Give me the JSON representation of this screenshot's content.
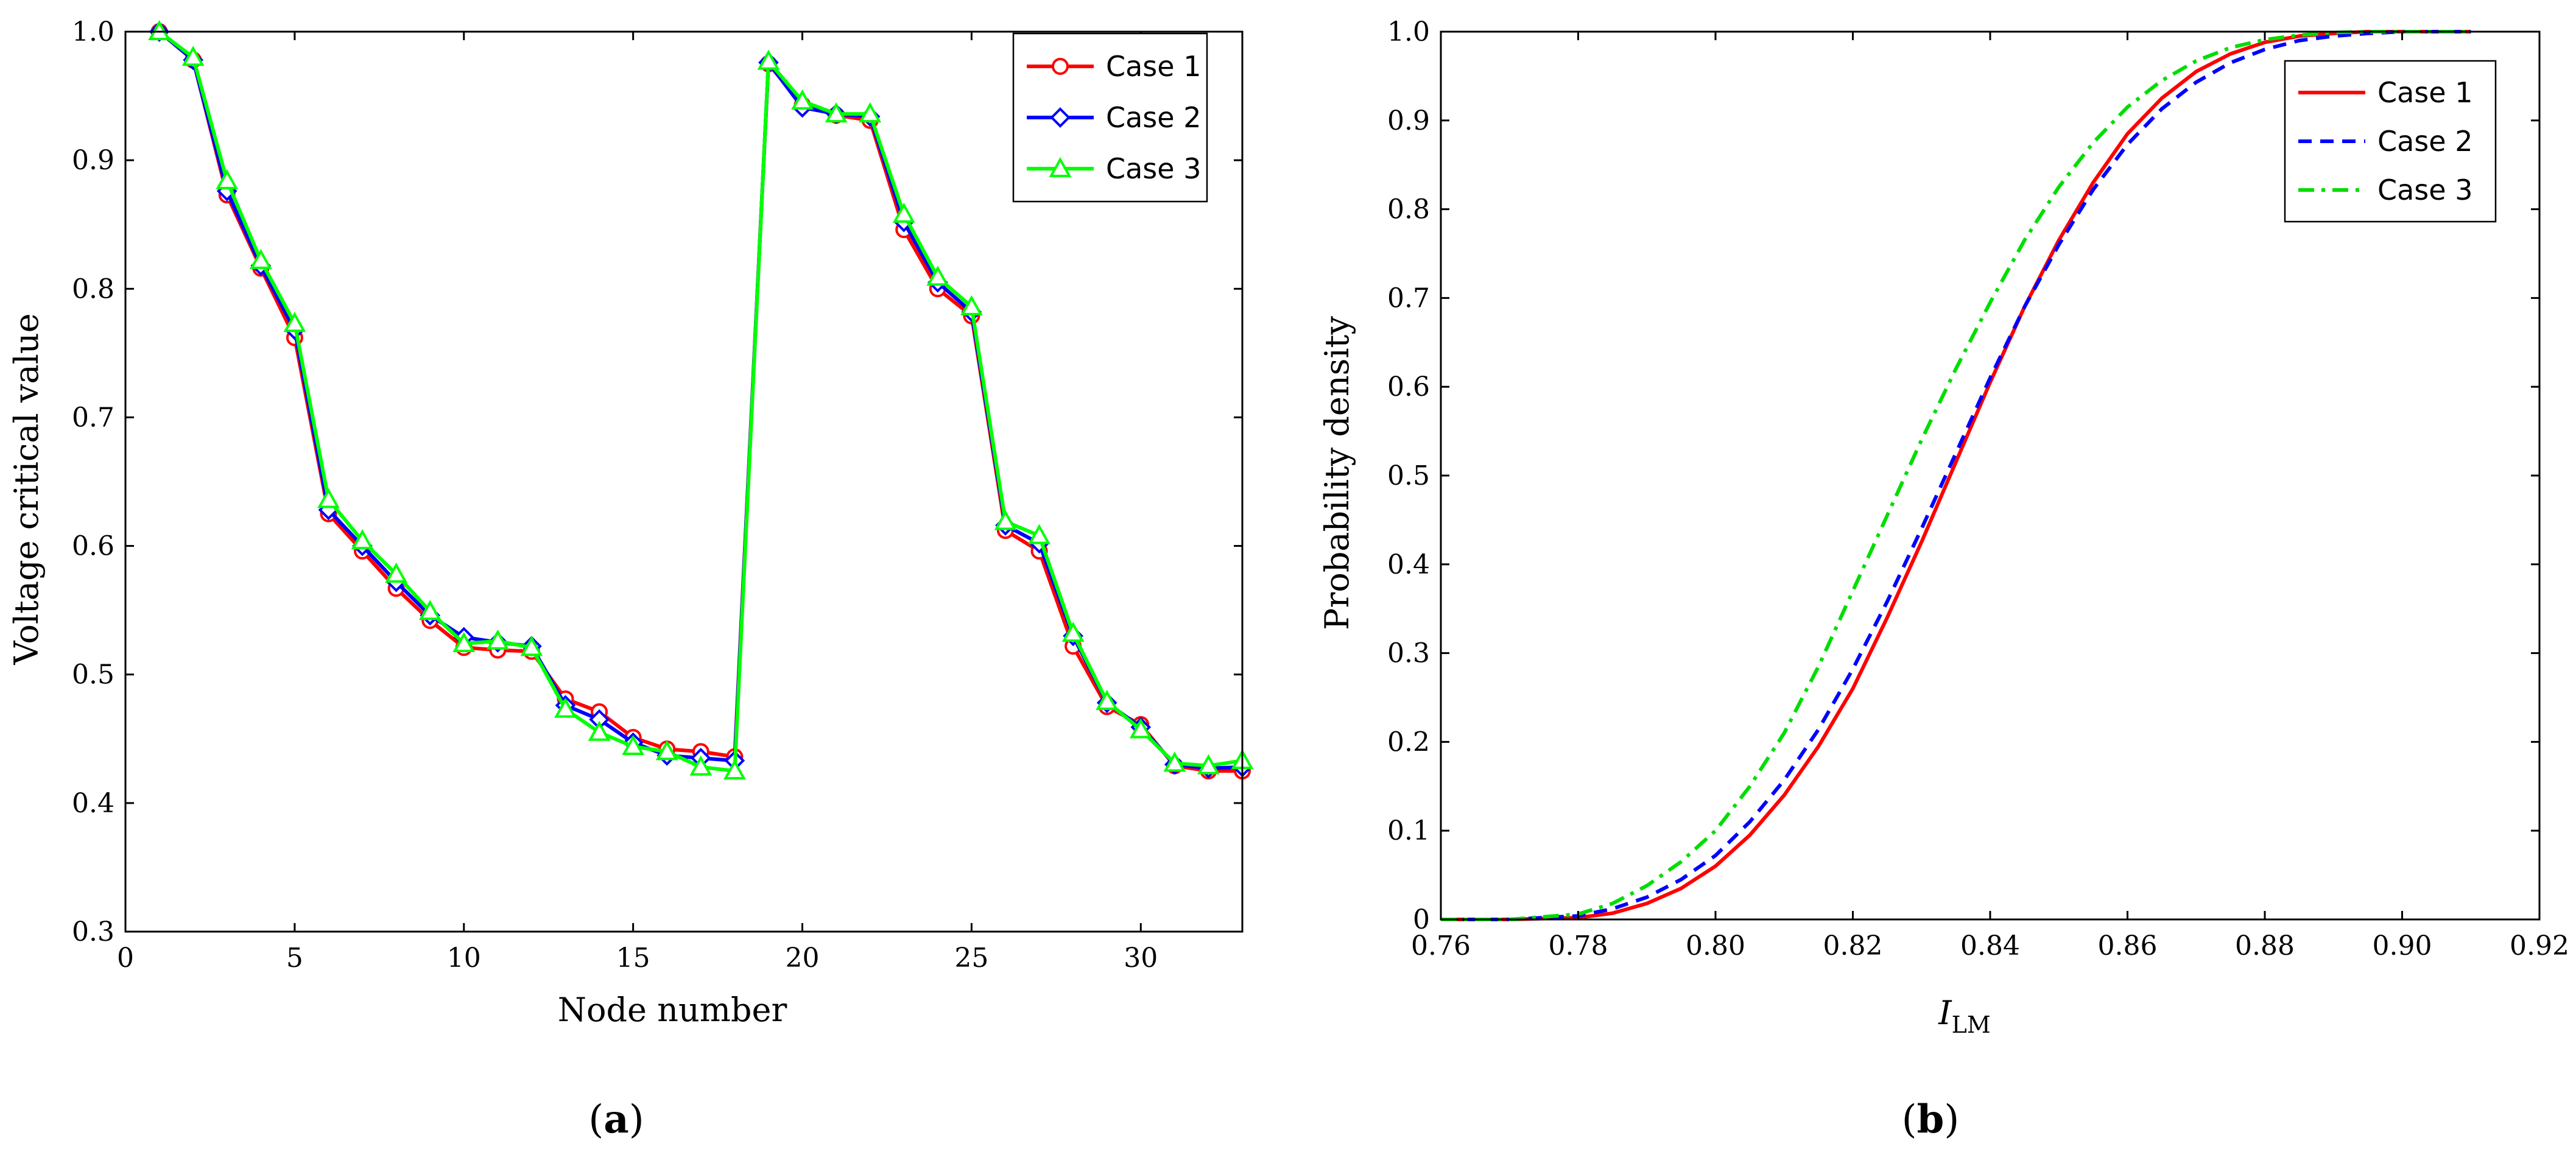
{
  "chart_data": [
    {
      "type": "line",
      "panel_label": "a",
      "title": "",
      "xlabel": "Node number",
      "ylabel": "Voltage critical value",
      "xlim": [
        0,
        33
      ],
      "ylim": [
        0.3,
        1.0
      ],
      "xticks": [
        0,
        5,
        10,
        15,
        20,
        25,
        30
      ],
      "xtick_labels": [
        "0",
        "5",
        "10",
        "15",
        "20",
        "25",
        "30"
      ],
      "yticks": [
        0.3,
        0.4,
        0.5,
        0.6,
        0.7,
        0.8,
        0.9,
        1.0
      ],
      "ytick_labels": [
        "0.3",
        "0.4",
        "0.5",
        "0.6",
        "0.7",
        "0.8",
        "0.9",
        "1.0"
      ],
      "grid": false,
      "legend_position": "top-right",
      "x": [
        1,
        2,
        3,
        4,
        5,
        6,
        7,
        8,
        9,
        10,
        11,
        12,
        13,
        14,
        15,
        16,
        17,
        18,
        19,
        20,
        21,
        22,
        23,
        24,
        25,
        26,
        27,
        28,
        29,
        30,
        31,
        32,
        33
      ],
      "series": [
        {
          "name": "Case 1",
          "color": "#ff0000",
          "marker": "circle",
          "values": [
            1.0,
            0.978,
            0.873,
            0.816,
            0.762,
            0.625,
            0.596,
            0.567,
            0.542,
            0.521,
            0.519,
            0.518,
            0.481,
            0.471,
            0.451,
            0.442,
            0.44,
            0.436,
            0.975,
            0.943,
            0.935,
            0.931,
            0.846,
            0.8,
            0.779,
            0.612,
            0.596,
            0.522,
            0.475,
            0.461,
            0.429,
            0.425,
            0.425
          ]
        },
        {
          "name": "Case 2",
          "color": "#0000ff",
          "marker": "diamond",
          "values": [
            1.0,
            0.978,
            0.876,
            0.818,
            0.768,
            0.628,
            0.6,
            0.572,
            0.546,
            0.529,
            0.525,
            0.522,
            0.476,
            0.465,
            0.447,
            0.437,
            0.435,
            0.433,
            0.976,
            0.941,
            0.936,
            0.934,
            0.852,
            0.805,
            0.782,
            0.616,
            0.602,
            0.53,
            0.478,
            0.459,
            0.43,
            0.427,
            0.428
          ]
        },
        {
          "name": "Case 3",
          "color": "#00ff00",
          "marker": "triangle",
          "values": [
            1.0,
            0.98,
            0.884,
            0.822,
            0.773,
            0.636,
            0.604,
            0.578,
            0.549,
            0.524,
            0.526,
            0.521,
            0.473,
            0.455,
            0.444,
            0.44,
            0.428,
            0.425,
            0.977,
            0.946,
            0.936,
            0.936,
            0.858,
            0.809,
            0.786,
            0.619,
            0.608,
            0.532,
            0.479,
            0.457,
            0.431,
            0.429,
            0.433
          ]
        }
      ]
    },
    {
      "type": "line",
      "panel_label": "b",
      "title": "",
      "xlabel_main": "I",
      "xlabel_sub": "LM",
      "ylabel": "Probability density",
      "xlim": [
        0.76,
        0.92
      ],
      "ylim": [
        0,
        1.0
      ],
      "xticks": [
        0.76,
        0.78,
        0.8,
        0.82,
        0.84,
        0.86,
        0.88,
        0.9,
        0.92
      ],
      "xtick_labels": [
        "0.76",
        "0.78",
        "0.80",
        "0.82",
        "0.84",
        "0.86",
        "0.88",
        "0.90",
        "0.92"
      ],
      "yticks": [
        0,
        0.1,
        0.2,
        0.3,
        0.4,
        0.5,
        0.6,
        0.7,
        0.8,
        0.9,
        1.0
      ],
      "ytick_labels": [
        "0",
        "0.1",
        "0.2",
        "0.3",
        "0.4",
        "0.5",
        "0.6",
        "0.7",
        "0.8",
        "0.9",
        "1.0"
      ],
      "grid": false,
      "legend_position": "top-right",
      "x": [
        0.76,
        0.77,
        0.78,
        0.785,
        0.79,
        0.795,
        0.8,
        0.805,
        0.81,
        0.815,
        0.82,
        0.825,
        0.83,
        0.835,
        0.84,
        0.845,
        0.85,
        0.855,
        0.86,
        0.865,
        0.87,
        0.875,
        0.88,
        0.885,
        0.89,
        0.895,
        0.9,
        0.905,
        0.91
      ],
      "series": [
        {
          "name": "Case 1",
          "color": "#ff0000",
          "dash": "solid",
          "values": [
            0,
            0,
            0.002,
            0.007,
            0.018,
            0.035,
            0.06,
            0.095,
            0.14,
            0.195,
            0.26,
            0.34,
            0.425,
            0.515,
            0.605,
            0.69,
            0.765,
            0.83,
            0.885,
            0.925,
            0.955,
            0.975,
            0.988,
            0.995,
            0.998,
            1.0,
            1.0,
            1.0,
            1.0
          ]
        },
        {
          "name": "Case 2",
          "color": "#0000ff",
          "dash": "dashed",
          "values": [
            0,
            0,
            0.004,
            0.012,
            0.025,
            0.045,
            0.072,
            0.11,
            0.157,
            0.214,
            0.282,
            0.358,
            0.44,
            0.525,
            0.61,
            0.69,
            0.76,
            0.822,
            0.873,
            0.913,
            0.943,
            0.965,
            0.98,
            0.99,
            0.995,
            0.998,
            1.0,
            1.0,
            1.0
          ]
        },
        {
          "name": "Case 3",
          "color": "#00dd00",
          "dash": "dashdot",
          "values": [
            0,
            0,
            0.006,
            0.018,
            0.038,
            0.065,
            0.1,
            0.15,
            0.21,
            0.285,
            0.37,
            0.455,
            0.54,
            0.62,
            0.695,
            0.765,
            0.825,
            0.875,
            0.915,
            0.945,
            0.967,
            0.982,
            0.991,
            0.996,
            0.999,
            1.0,
            1.0,
            1.0,
            1.0
          ]
        }
      ]
    }
  ]
}
